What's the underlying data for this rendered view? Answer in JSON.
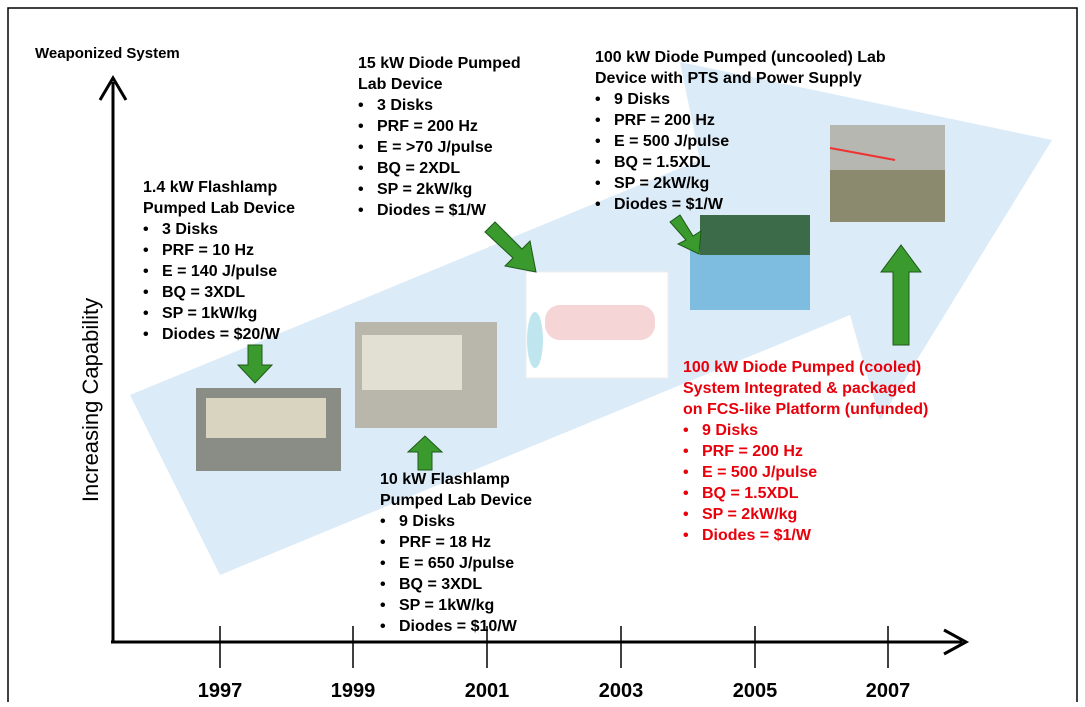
{
  "axes": {
    "top_label": "Weaponized System",
    "y_label": "Increasing Capability",
    "x_ticks": [
      "1997",
      "1999",
      "2001",
      "2003",
      "2005",
      "2007"
    ]
  },
  "devices": [
    {
      "title_lines": [
        "1.4 kW Flashlamp",
        "Pumped Lab Device"
      ],
      "bullets": [
        "3 Disks",
        "PRF = 10 Hz",
        "E = 140 J/pulse",
        "BQ = 3XDL",
        "SP = 1kW/kg",
        "Diodes = $20/W"
      ]
    },
    {
      "title_lines": [
        "15 kW Diode Pumped",
        "Lab Device"
      ],
      "bullets": [
        "3 Disks",
        "PRF = 200 Hz",
        "E = >70 J/pulse",
        "BQ = 2XDL",
        "SP = 2kW/kg",
        "Diodes = $1/W"
      ]
    },
    {
      "title_lines": [
        "100 kW Diode Pumped (uncooled) Lab",
        "Device with PTS and Power Supply"
      ],
      "bullets": [
        "9 Disks",
        "PRF = 200 Hz",
        "E = 500 J/pulse",
        "BQ = 1.5XDL",
        "SP = 2kW/kg",
        "Diodes = $1/W"
      ]
    },
    {
      "title_lines": [
        "100 kW Diode Pumped (cooled)",
        "System Integrated & packaged",
        "on FCS-like Platform (unfunded)"
      ],
      "bullets": [
        "9 Disks",
        "PRF = 200 Hz",
        "E = 500 J/pulse",
        "BQ = 1.5XDL",
        "SP = 2kW/kg",
        "Diodes = $1/W"
      ]
    },
    {
      "title_lines": [
        "10 kW Flashlamp",
        "Pumped Lab Device"
      ],
      "bullets": [
        "9 Disks",
        "PRF = 18 Hz",
        "E = 650 J/pulse",
        "BQ = 3XDL",
        "SP = 1kW/kg",
        "Diodes = $10/W"
      ]
    }
  ]
}
